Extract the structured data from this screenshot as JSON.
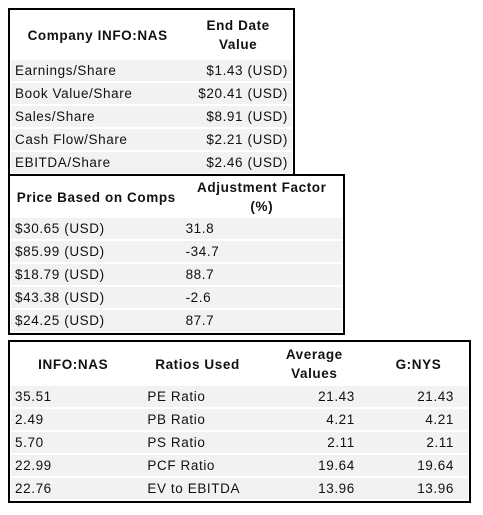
{
  "table1": {
    "headers": [
      "Company INFO:NAS",
      "End Date Value"
    ],
    "rows": [
      [
        "Earnings/Share",
        "$1.43 (USD)"
      ],
      [
        "Book Value/Share",
        "$20.41 (USD)"
      ],
      [
        "Sales/Share",
        "$8.91 (USD)"
      ],
      [
        "Cash Flow/Share",
        "$2.21 (USD)"
      ],
      [
        "EBITDA/Share",
        "$2.46 (USD)"
      ]
    ]
  },
  "table2": {
    "headers": [
      "Price Based on Comps",
      "Adjustment Factor (%)"
    ],
    "rows": [
      [
        "$30.65 (USD)",
        "31.8"
      ],
      [
        "$85.99 (USD)",
        "-34.7"
      ],
      [
        "$18.79 (USD)",
        "88.7"
      ],
      [
        "$43.38 (USD)",
        "-2.6"
      ],
      [
        "$24.25 (USD)",
        "87.7"
      ]
    ]
  },
  "table3": {
    "headers": [
      "INFO:NAS",
      "Ratios Used",
      "Average Values",
      "G:NYS"
    ],
    "rows": [
      [
        "35.51",
        "PE Ratio",
        "21.43",
        "21.43"
      ],
      [
        "2.49",
        "PB Ratio",
        "4.21",
        "4.21"
      ],
      [
        "5.70",
        "PS Ratio",
        "2.11",
        "2.11"
      ],
      [
        "22.99",
        "PCF Ratio",
        "19.64",
        "19.64"
      ],
      [
        "22.76",
        "EV to EBITDA",
        "13.96",
        "13.96"
      ]
    ]
  }
}
